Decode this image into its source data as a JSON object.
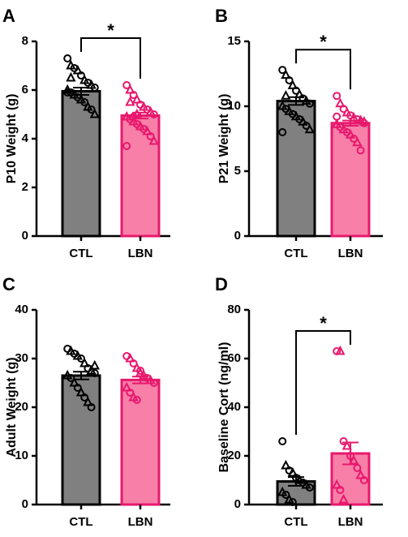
{
  "chart_data": [
    {
      "type": "bar",
      "panel": "A",
      "ylabel": "P10 Weight (g)",
      "categories": [
        "CTL",
        "LBN"
      ],
      "values": [
        5.95,
        4.95
      ],
      "errors": [
        0.15,
        0.12
      ],
      "colors": [
        "#808080",
        "#f77fa8"
      ],
      "edge_colors": [
        "#000000",
        "#e8186d"
      ],
      "ylim": [
        0,
        8
      ],
      "yticks": [
        0,
        2,
        4,
        6,
        8
      ],
      "significance": "*",
      "points": [
        [
          7.3,
          7.0,
          6.9,
          6.8,
          6.6,
          6.4,
          6.3,
          6.2,
          6.1,
          6.0,
          5.9,
          5.8,
          5.7,
          5.6,
          5.5,
          5.3,
          5.2,
          5.0,
          5.9,
          6.5
        ],
        [
          6.2,
          6.0,
          5.8,
          5.6,
          5.4,
          5.3,
          5.2,
          5.1,
          5.0,
          4.9,
          4.8,
          4.7,
          4.6,
          4.5,
          4.4,
          4.3,
          4.1,
          3.9,
          3.7,
          5.5,
          4.9,
          5.0
        ]
      ]
    },
    {
      "type": "bar",
      "panel": "B",
      "ylabel": "P21 Weight (g)",
      "categories": [
        "CTL",
        "LBN"
      ],
      "values": [
        10.4,
        8.7
      ],
      "errors": [
        0.3,
        0.2
      ],
      "colors": [
        "#808080",
        "#f77fa8"
      ],
      "edge_colors": [
        "#000000",
        "#e8186d"
      ],
      "ylim": [
        0,
        15
      ],
      "yticks": [
        0,
        5,
        10,
        15
      ],
      "significance": "*",
      "points": [
        [
          12.8,
          12.4,
          12.0,
          11.6,
          11.2,
          10.9,
          10.6,
          10.4,
          10.2,
          10.0,
          9.8,
          9.6,
          9.4,
          9.2,
          9.0,
          8.8,
          8.5,
          8.2,
          8.0,
          10.8
        ],
        [
          10.8,
          10.2,
          9.8,
          9.5,
          9.3,
          9.1,
          9.0,
          8.9,
          8.7,
          8.6,
          8.4,
          8.2,
          8.0,
          7.8,
          7.5,
          7.2,
          6.6,
          8.8,
          9.2
        ]
      ]
    },
    {
      "type": "bar",
      "panel": "C",
      "ylabel": "Adult Weight (g)",
      "categories": [
        "CTL",
        "LBN"
      ],
      "values": [
        26.5,
        25.6
      ],
      "errors": [
        0.8,
        0.7
      ],
      "colors": [
        "#808080",
        "#f77fa8"
      ],
      "edge_colors": [
        "#000000",
        "#e8186d"
      ],
      "ylim": [
        0,
        40
      ],
      "yticks": [
        0,
        10,
        20,
        30,
        40
      ],
      "points": [
        [
          32,
          31.5,
          31,
          30.5,
          30,
          29,
          28,
          27.5,
          27,
          26.5,
          26,
          25,
          24,
          23,
          22,
          21,
          20,
          28.5
        ],
        [
          30.5,
          30,
          29,
          28,
          27.5,
          26.5,
          26,
          25.5,
          25,
          24,
          23,
          22,
          21.5,
          27
        ]
      ]
    },
    {
      "type": "bar",
      "panel": "D",
      "ylabel": "Baseline Cort (ng/ml)",
      "categories": [
        "CTL",
        "LBN"
      ],
      "values": [
        9.5,
        21
      ],
      "errors": [
        1.8,
        4.5
      ],
      "colors": [
        "#808080",
        "#f77fa8"
      ],
      "edge_colors": [
        "#000000",
        "#e8186d"
      ],
      "ylim": [
        0,
        80
      ],
      "yticks": [
        0,
        20,
        40,
        60,
        80
      ],
      "significance": "*",
      "points": [
        [
          26,
          16,
          14,
          13,
          11,
          10,
          9,
          8,
          7,
          5,
          4,
          2,
          1
        ],
        [
          63,
          63,
          26,
          24,
          20,
          18,
          15,
          12,
          10,
          8,
          6,
          2
        ]
      ]
    }
  ]
}
